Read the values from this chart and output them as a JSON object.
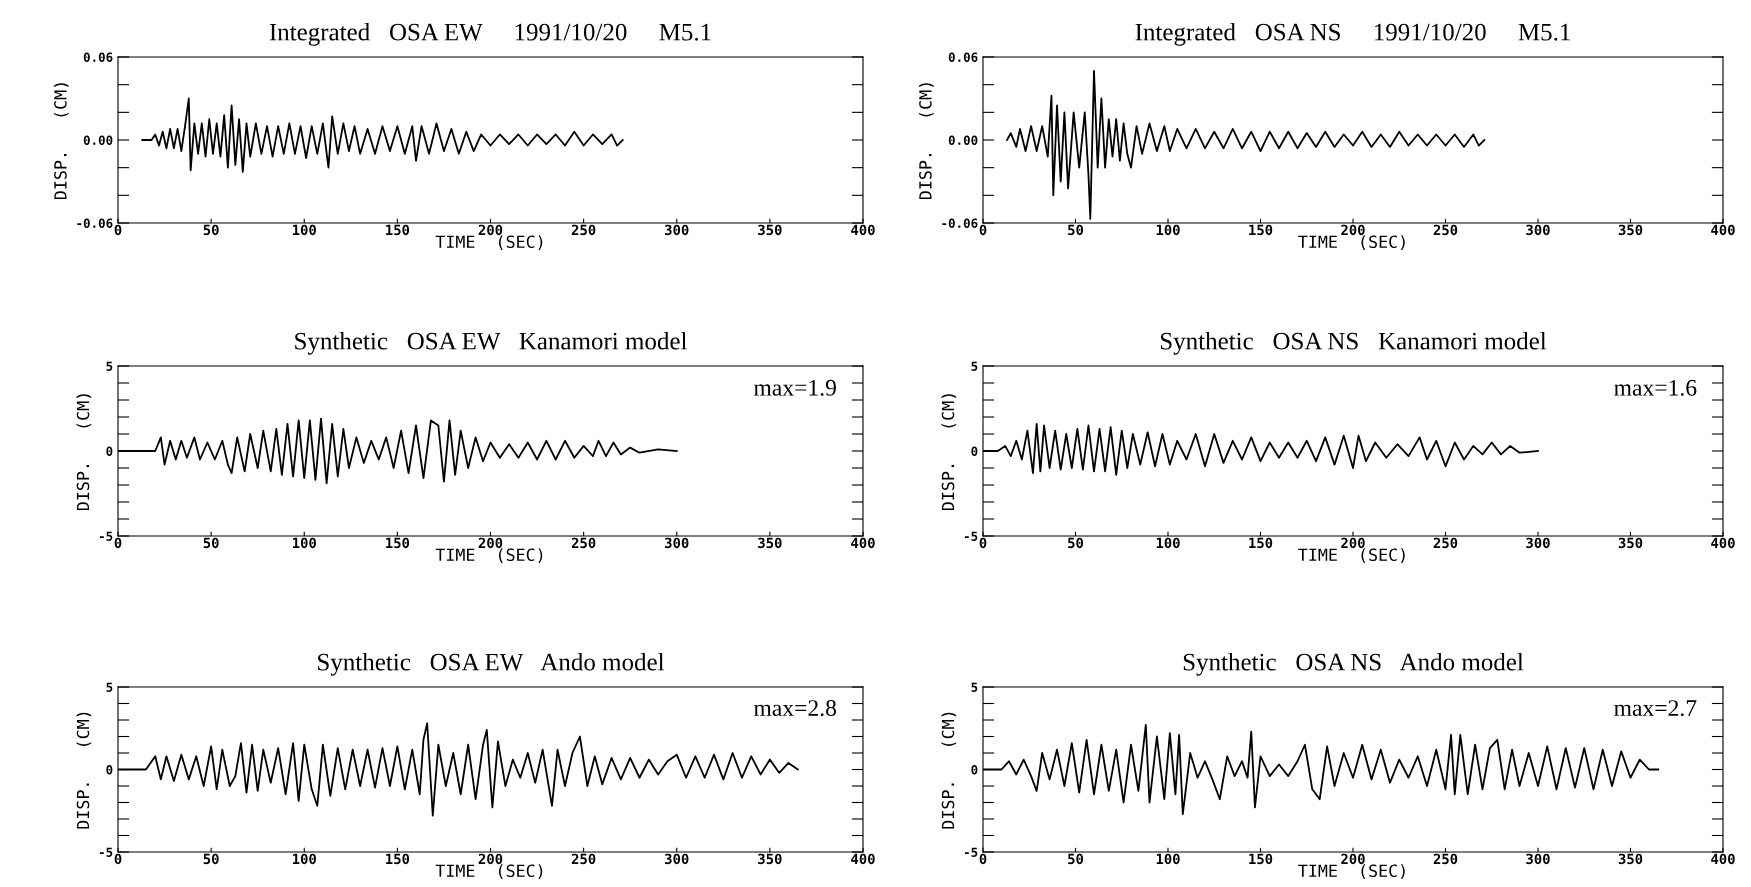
{
  "chart_data": [
    {
      "type": "line",
      "title": "Integrated   OSA EW     1991/10/20     M5.1",
      "xlabel": "TIME  (SEC)",
      "ylabel": "DISP.   (CM)",
      "xlim": [
        0,
        400
      ],
      "ylim": [
        -0.06,
        0.06
      ],
      "xticks": [
        0,
        50,
        100,
        150,
        200,
        250,
        300,
        350,
        400
      ],
      "yticks": [
        {
          "value": -0.06,
          "label": "-0.06"
        },
        {
          "value": -0.04,
          "label": null
        },
        {
          "value": -0.02,
          "label": null
        },
        {
          "value": 0,
          "label": "0.00"
        },
        {
          "value": 0.02,
          "label": null
        },
        {
          "value": 0.04,
          "label": null
        },
        {
          "value": 0.06,
          "label": "0.06"
        }
      ],
      "series": [
        {
          "color": "#000000",
          "x": [
            13,
            18,
            20,
            22,
            24,
            26,
            28,
            30,
            32,
            34,
            36,
            38,
            39,
            41,
            43,
            45,
            47,
            49,
            51,
            53,
            55,
            57,
            59,
            61,
            63,
            65,
            67,
            69,
            71,
            74,
            77,
            80,
            83,
            86,
            89,
            92,
            95,
            98,
            101,
            104,
            107,
            110,
            113,
            115,
            118,
            121,
            124,
            127,
            130,
            134,
            138,
            142,
            146,
            150,
            154,
            158,
            160,
            163,
            167,
            171,
            175,
            179,
            183,
            187,
            191,
            195,
            200,
            205,
            210,
            215,
            220,
            225,
            230,
            235,
            240,
            245,
            250,
            255,
            260,
            265,
            268,
            271
          ],
          "values": [
            0,
            0,
            0.004,
            -0.004,
            0.006,
            -0.006,
            0.008,
            -0.006,
            0.008,
            -0.008,
            0.01,
            0.03,
            -0.022,
            0.012,
            -0.01,
            0.012,
            -0.012,
            0.015,
            -0.01,
            0.012,
            -0.012,
            0.018,
            -0.02,
            0.025,
            -0.018,
            0.015,
            -0.023,
            0.012,
            -0.012,
            0.012,
            -0.01,
            0.01,
            -0.012,
            0.01,
            -0.01,
            0.012,
            -0.01,
            0.01,
            -0.013,
            0.01,
            -0.01,
            0.012,
            -0.02,
            0.017,
            -0.01,
            0.012,
            -0.008,
            0.01,
            -0.01,
            0.008,
            -0.01,
            0.01,
            -0.008,
            0.01,
            -0.01,
            0.01,
            -0.015,
            0.01,
            -0.01,
            0.012,
            -0.008,
            0.008,
            -0.01,
            0.006,
            -0.008,
            0.004,
            -0.004,
            0.004,
            -0.003,
            0.004,
            -0.004,
            0.004,
            -0.003,
            0.004,
            -0.004,
            0.006,
            -0.004,
            0.004,
            -0.003,
            0.004,
            -0.004,
            0
          ]
        }
      ]
    },
    {
      "type": "line",
      "title": "Integrated   OSA NS     1991/10/20     M5.1",
      "xlabel": "TIME  (SEC)",
      "ylabel": "DISP.   (CM)",
      "xlim": [
        0,
        400
      ],
      "ylim": [
        -0.06,
        0.06
      ],
      "xticks": [
        0,
        50,
        100,
        150,
        200,
        250,
        300,
        350,
        400
      ],
      "yticks": [
        {
          "value": -0.06,
          "label": "-0.06"
        },
        {
          "value": -0.04,
          "label": null
        },
        {
          "value": -0.02,
          "label": null
        },
        {
          "value": 0,
          "label": "0.00"
        },
        {
          "value": 0.02,
          "label": null
        },
        {
          "value": 0.04,
          "label": null
        },
        {
          "value": 0.06,
          "label": "0.06"
        }
      ],
      "series": [
        {
          "color": "#000000",
          "x": [
            13,
            15,
            18,
            20,
            23,
            26,
            29,
            32,
            35,
            37,
            38,
            40,
            42,
            44,
            46,
            49,
            52,
            55,
            57,
            58,
            60,
            62,
            64,
            66,
            68,
            70,
            72,
            74,
            76,
            78,
            80,
            83,
            86,
            90,
            94,
            98,
            101,
            105,
            110,
            115,
            120,
            125,
            130,
            135,
            140,
            145,
            150,
            155,
            160,
            165,
            170,
            175,
            180,
            185,
            190,
            195,
            200,
            205,
            210,
            215,
            220,
            225,
            230,
            235,
            240,
            245,
            250,
            255,
            260,
            265,
            268,
            271
          ],
          "values": [
            0,
            0.005,
            -0.005,
            0.008,
            -0.008,
            0.01,
            -0.008,
            0.01,
            -0.012,
            0.032,
            -0.04,
            0.025,
            -0.03,
            0.02,
            -0.035,
            0.02,
            -0.02,
            0.02,
            -0.025,
            -0.057,
            0.05,
            -0.02,
            0.03,
            -0.02,
            0.015,
            -0.012,
            0.015,
            -0.015,
            0.012,
            -0.01,
            -0.02,
            0.01,
            -0.01,
            0.012,
            -0.008,
            0.01,
            -0.008,
            0.008,
            -0.006,
            0.008,
            -0.006,
            0.006,
            -0.006,
            0.008,
            -0.006,
            0.006,
            -0.008,
            0.006,
            -0.006,
            0.006,
            -0.006,
            0.005,
            -0.005,
            0.006,
            -0.005,
            0.004,
            -0.004,
            0.006,
            -0.005,
            0.004,
            -0.005,
            0.006,
            -0.004,
            0.004,
            -0.004,
            0.004,
            -0.004,
            0.004,
            -0.005,
            0.004,
            -0.004,
            0
          ]
        }
      ]
    },
    {
      "type": "line",
      "title": "Synthetic   OSA EW   Kanamori model",
      "xlabel": "TIME  (SEC)",
      "ylabel": "DISP.   (CM)",
      "xlim": [
        0,
        400
      ],
      "ylim": [
        -5,
        5
      ],
      "xticks": [
        0,
        50,
        100,
        150,
        200,
        250,
        300,
        350,
        400
      ],
      "yticks": [
        {
          "value": -5,
          "label": "-5"
        },
        {
          "value": -4,
          "label": null
        },
        {
          "value": -3,
          "label": null
        },
        {
          "value": -2,
          "label": null
        },
        {
          "value": -1,
          "label": null
        },
        {
          "value": 0,
          "label": "0"
        },
        {
          "value": 1,
          "label": null
        },
        {
          "value": 2,
          "label": null
        },
        {
          "value": 3,
          "label": null
        },
        {
          "value": 4,
          "label": null
        },
        {
          "value": 5,
          "label": "5"
        }
      ],
      "annotations": [
        "max=1.9"
      ],
      "series": [
        {
          "color": "#000000",
          "x": [
            0,
            20,
            23,
            25,
            28,
            31,
            34,
            37,
            41,
            44,
            48,
            52,
            56,
            59,
            61,
            64,
            68,
            71,
            75,
            78,
            82,
            85,
            88,
            91,
            94,
            97,
            100,
            103,
            106,
            109,
            112,
            115,
            118,
            121,
            124,
            128,
            132,
            136,
            140,
            144,
            148,
            152,
            156,
            160,
            164,
            168,
            172,
            175,
            178,
            181,
            184,
            188,
            192,
            196,
            200,
            205,
            210,
            215,
            220,
            225,
            230,
            235,
            240,
            245,
            250,
            255,
            258,
            262,
            266,
            270,
            275,
            280,
            290,
            300
          ],
          "values": [
            0,
            0,
            0.8,
            -0.8,
            0.6,
            -0.5,
            0.6,
            -0.4,
            0.8,
            -0.5,
            0.5,
            -0.5,
            0.6,
            -0.8,
            -1.3,
            0.8,
            -1.2,
            1.0,
            -1.0,
            1.2,
            -1.2,
            1.3,
            -1.4,
            1.6,
            -1.5,
            1.8,
            -1.6,
            1.8,
            -1.7,
            1.9,
            -1.9,
            1.6,
            -1.5,
            1.3,
            -1.0,
            0.8,
            -0.7,
            0.6,
            -0.5,
            0.8,
            -1.0,
            1.2,
            -1.3,
            1.5,
            -1.6,
            1.8,
            1.5,
            -1.8,
            1.8,
            -1.4,
            1.2,
            -1.0,
            0.8,
            -0.6,
            0.5,
            -0.4,
            0.4,
            -0.4,
            0.5,
            -0.5,
            0.6,
            -0.5,
            0.6,
            -0.4,
            0.3,
            -0.3,
            0.6,
            -0.3,
            0.5,
            -0.2,
            0.2,
            -0.1,
            0.1,
            0
          ]
        }
      ]
    },
    {
      "type": "line",
      "title": "Synthetic   OSA NS   Kanamori model",
      "xlabel": "TIME  (SEC)",
      "ylabel": "DISP.   (CM)",
      "xlim": [
        0,
        400
      ],
      "ylim": [
        -5,
        5
      ],
      "xticks": [
        0,
        50,
        100,
        150,
        200,
        250,
        300,
        350,
        400
      ],
      "yticks": [
        {
          "value": -5,
          "label": "-5"
        },
        {
          "value": -4,
          "label": null
        },
        {
          "value": -3,
          "label": null
        },
        {
          "value": -2,
          "label": null
        },
        {
          "value": -1,
          "label": null
        },
        {
          "value": 0,
          "label": "0"
        },
        {
          "value": 1,
          "label": null
        },
        {
          "value": 2,
          "label": null
        },
        {
          "value": 3,
          "label": null
        },
        {
          "value": 4,
          "label": null
        },
        {
          "value": 5,
          "label": "5"
        }
      ],
      "annotations": [
        "max=1.6"
      ],
      "series": [
        {
          "color": "#000000",
          "x": [
            0,
            8,
            12,
            15,
            18,
            21,
            24,
            27,
            29,
            31,
            33,
            36,
            39,
            42,
            45,
            48,
            51,
            54,
            57,
            60,
            63,
            66,
            69,
            72,
            75,
            78,
            81,
            85,
            89,
            93,
            97,
            101,
            105,
            110,
            115,
            120,
            125,
            130,
            135,
            140,
            145,
            150,
            155,
            160,
            165,
            170,
            175,
            180,
            185,
            190,
            195,
            200,
            203,
            207,
            212,
            218,
            224,
            230,
            236,
            240,
            245,
            250,
            255,
            260,
            265,
            270,
            275,
            280,
            285,
            290,
            300
          ],
          "values": [
            0,
            0,
            0.3,
            -0.3,
            0.6,
            -0.5,
            1.2,
            -1.3,
            1.6,
            -1.2,
            1.5,
            -1.0,
            1.2,
            -1.1,
            1.0,
            -1.0,
            1.3,
            -1.1,
            1.5,
            -1.2,
            1.3,
            -1.2,
            1.4,
            -1.4,
            1.2,
            -1.0,
            1.0,
            -0.8,
            1.1,
            -0.9,
            1.0,
            -0.8,
            0.6,
            -0.5,
            1.0,
            -0.9,
            1.0,
            -0.7,
            0.6,
            -0.5,
            0.8,
            -0.6,
            0.5,
            -0.4,
            0.5,
            -0.4,
            0.6,
            -0.6,
            0.8,
            -0.8,
            0.9,
            -1.0,
            0.9,
            -0.6,
            0.5,
            -0.4,
            0.4,
            -0.3,
            0.8,
            -0.5,
            0.6,
            -0.9,
            0.5,
            -0.5,
            0.3,
            -0.2,
            0.5,
            -0.2,
            0.3,
            -0.1,
            0
          ]
        }
      ]
    },
    {
      "type": "line",
      "title": "Synthetic   OSA EW   Ando model",
      "xlabel": "TIME  (SEC)",
      "ylabel": "DISP.   (CM)",
      "xlim": [
        0,
        400
      ],
      "ylim": [
        -5,
        5
      ],
      "xticks": [
        0,
        50,
        100,
        150,
        200,
        250,
        300,
        350,
        400
      ],
      "yticks": [
        {
          "value": -5,
          "label": "-5"
        },
        {
          "value": -4,
          "label": null
        },
        {
          "value": -3,
          "label": null
        },
        {
          "value": -2,
          "label": null
        },
        {
          "value": -1,
          "label": null
        },
        {
          "value": 0,
          "label": "0"
        },
        {
          "value": 1,
          "label": null
        },
        {
          "value": 2,
          "label": null
        },
        {
          "value": 3,
          "label": null
        },
        {
          "value": 4,
          "label": null
        },
        {
          "value": 5,
          "label": "5"
        }
      ],
      "annotations": [
        "max=2.8"
      ],
      "series": [
        {
          "color": "#000000",
          "x": [
            0,
            15,
            20,
            23,
            26,
            30,
            34,
            38,
            42,
            46,
            50,
            53,
            56,
            60,
            63,
            66,
            69,
            72,
            75,
            78,
            82,
            86,
            90,
            94,
            97,
            100,
            104,
            107,
            110,
            114,
            118,
            122,
            126,
            130,
            134,
            138,
            142,
            146,
            150,
            154,
            158,
            162,
            164,
            166,
            169,
            172,
            176,
            180,
            184,
            188,
            192,
            196,
            198,
            201,
            204,
            208,
            212,
            216,
            220,
            224,
            228,
            233,
            236,
            240,
            244,
            248,
            252,
            256,
            260,
            265,
            270,
            275,
            280,
            285,
            290,
            295,
            300,
            305,
            310,
            315,
            320,
            325,
            330,
            335,
            340,
            345,
            350,
            355,
            360,
            365
          ],
          "values": [
            0,
            0,
            0.8,
            -0.6,
            0.8,
            -0.7,
            0.9,
            -0.6,
            0.8,
            -1.0,
            1.4,
            -1.2,
            1.2,
            -1.0,
            -0.4,
            1.6,
            -1.4,
            1.5,
            -1.3,
            1.2,
            -0.8,
            1.3,
            -1.5,
            1.6,
            -1.9,
            1.5,
            -1.2,
            -2.2,
            1.5,
            -1.6,
            1.3,
            -1.2,
            1.2,
            -1.0,
            1.2,
            -1.1,
            1.3,
            -1.0,
            1.4,
            -1.2,
            1.2,
            -1.5,
            1.8,
            2.8,
            -2.8,
            1.5,
            -1.0,
            1.0,
            -1.5,
            1.5,
            -1.8,
            1.5,
            2.4,
            -2.3,
            1.7,
            -1.0,
            0.6,
            -0.5,
            1.0,
            -0.8,
            1.2,
            -2.2,
            1.2,
            -1.0,
            1.0,
            2.0,
            -1.0,
            0.8,
            -0.9,
            0.7,
            -0.6,
            0.7,
            -0.5,
            0.6,
            -0.3,
            0.5,
            0.9,
            -0.5,
            0.8,
            -0.5,
            0.9,
            -0.6,
            1.0,
            -0.5,
            0.8,
            -0.3,
            0.6,
            -0.2,
            0.4,
            0
          ]
        }
      ]
    },
    {
      "type": "line",
      "title": "Synthetic   OSA NS   Ando model",
      "xlabel": "TIME  (SEC)",
      "ylabel": "DISP.   (CM)",
      "xlim": [
        0,
        400
      ],
      "ylim": [
        -5,
        5
      ],
      "xticks": [
        0,
        50,
        100,
        150,
        200,
        250,
        300,
        350,
        400
      ],
      "yticks": [
        {
          "value": -5,
          "label": "-5"
        },
        {
          "value": -4,
          "label": null
        },
        {
          "value": -3,
          "label": null
        },
        {
          "value": -2,
          "label": null
        },
        {
          "value": -1,
          "label": null
        },
        {
          "value": 0,
          "label": "0"
        },
        {
          "value": 1,
          "label": null
        },
        {
          "value": 2,
          "label": null
        },
        {
          "value": 3,
          "label": null
        },
        {
          "value": 4,
          "label": null
        },
        {
          "value": 5,
          "label": "5"
        }
      ],
      "annotations": [
        "max=2.7"
      ],
      "series": [
        {
          "color": "#000000",
          "x": [
            0,
            10,
            14,
            18,
            22,
            26,
            29,
            32,
            36,
            40,
            44,
            48,
            52,
            56,
            60,
            64,
            68,
            72,
            76,
            80,
            84,
            88,
            90,
            94,
            98,
            101,
            104,
            106,
            108,
            112,
            116,
            120,
            124,
            128,
            132,
            136,
            140,
            143,
            145,
            147,
            150,
            155,
            160,
            165,
            170,
            174,
            178,
            182,
            186,
            190,
            195,
            200,
            205,
            210,
            215,
            220,
            225,
            230,
            235,
            240,
            245,
            250,
            253,
            255,
            258,
            262,
            266,
            270,
            274,
            278,
            282,
            286,
            290,
            295,
            300,
            305,
            310,
            315,
            320,
            325,
            330,
            335,
            340,
            345,
            350,
            355,
            360,
            365
          ],
          "values": [
            0,
            0,
            0.5,
            -0.3,
            0.6,
            -0.4,
            -1.3,
            1.0,
            -0.6,
            1.2,
            -1.0,
            1.6,
            -1.4,
            1.8,
            -1.5,
            1.5,
            -1.3,
            1.2,
            -2.0,
            1.5,
            -1.3,
            2.7,
            -2.0,
            2.0,
            -1.8,
            2.2,
            -1.5,
            2.1,
            -2.7,
            1.0,
            -0.5,
            0.5,
            -0.6,
            -1.8,
            0.8,
            -0.4,
            0.5,
            -0.5,
            2.3,
            -2.3,
            0.8,
            -0.4,
            0.3,
            -0.4,
            0.5,
            1.5,
            -1.2,
            -1.8,
            1.4,
            -1.0,
            1.0,
            -0.5,
            1.5,
            -0.6,
            1.2,
            -0.8,
            0.6,
            -0.5,
            0.8,
            -1.0,
            1.2,
            -1.2,
            2.1,
            -1.5,
            2.1,
            -1.5,
            1.5,
            -1.2,
            1.3,
            1.8,
            -1.2,
            1.2,
            -1.0,
            1.0,
            -1.0,
            1.4,
            -1.2,
            1.3,
            -1.1,
            1.3,
            -1.2,
            1.2,
            -1.0,
            1.1,
            -0.5,
            0.6,
            0,
            0
          ]
        }
      ]
    }
  ]
}
